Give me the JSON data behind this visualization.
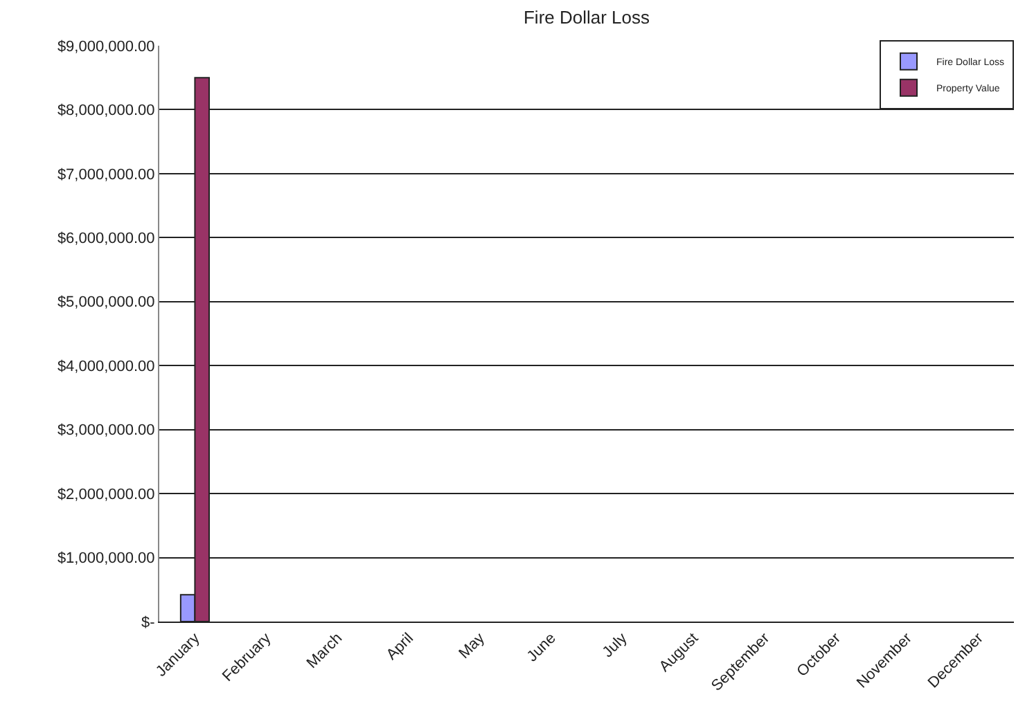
{
  "chart_data": {
    "type": "bar",
    "title": "Fire Dollar Loss",
    "categories": [
      "January",
      "February",
      "March",
      "April",
      "May",
      "June",
      "July",
      "August",
      "September",
      "October",
      "November",
      "December"
    ],
    "series": [
      {
        "name": "Fire Dollar Loss",
        "color": "#9999ff",
        "values": [
          420000,
          null,
          null,
          null,
          null,
          null,
          null,
          null,
          null,
          null,
          null,
          null
        ]
      },
      {
        "name": "Property Value",
        "color": "#993366",
        "values": [
          8500000,
          null,
          null,
          null,
          null,
          null,
          null,
          null,
          null,
          null,
          null,
          null
        ]
      }
    ],
    "ylim": [
      0,
      9000000
    ],
    "yticks": [
      {
        "value": 0,
        "label": "$-"
      },
      {
        "value": 1000000,
        "label": "$1,000,000.00"
      },
      {
        "value": 2000000,
        "label": "$2,000,000.00"
      },
      {
        "value": 3000000,
        "label": "$3,000,000.00"
      },
      {
        "value": 4000000,
        "label": "$4,000,000.00"
      },
      {
        "value": 5000000,
        "label": "$5,000,000.00"
      },
      {
        "value": 6000000,
        "label": "$6,000,000.00"
      },
      {
        "value": 7000000,
        "label": "$7,000,000.00"
      },
      {
        "value": 8000000,
        "label": "$8,000,000.00"
      },
      {
        "value": 9000000,
        "label": "$9,000,000.00"
      }
    ],
    "grid": "y",
    "legend": "top right"
  }
}
